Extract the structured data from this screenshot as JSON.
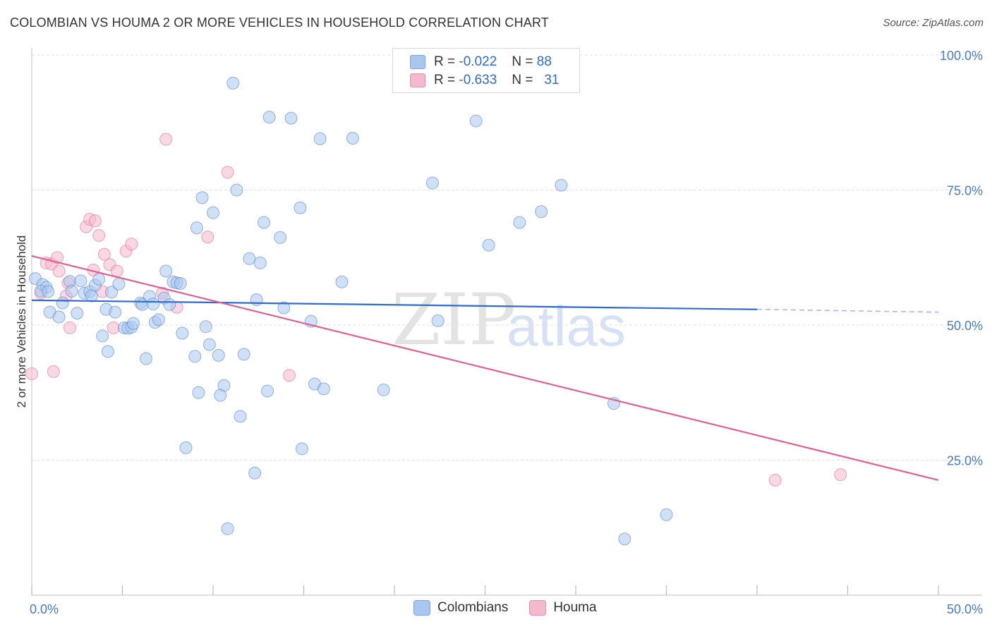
{
  "title": "COLOMBIAN VS HOUMA 2 OR MORE VEHICLES IN HOUSEHOLD CORRELATION CHART",
  "source": "Source: ZipAtlas.com",
  "watermark": {
    "zip": "ZIP",
    "atlas": "atlas"
  },
  "legend": {
    "rows": [
      {
        "r_label": "R =",
        "r_value": "-0.022",
        "n_label": "N =",
        "n_value": "88",
        "color": "#a9c6f0"
      },
      {
        "r_label": "R =",
        "r_value": "-0.633",
        "n_label": "N =",
        "n_value": "31",
        "color": "#f5b8cc"
      }
    ]
  },
  "bottom_legend": [
    {
      "label": "Colombians",
      "color": "#a9c6f0"
    },
    {
      "label": "Houma",
      "color": "#f5b8cc"
    }
  ],
  "chart_data": {
    "type": "scatter",
    "title": "COLOMBIAN VS HOUMA 2 OR MORE VEHICLES IN HOUSEHOLD CORRELATION CHART",
    "xlabel": "",
    "ylabel": "2 or more Vehicles in Household",
    "xlim": [
      0,
      50
    ],
    "ylim": [
      0,
      105
    ],
    "x_tick_labels": [
      "0.0%",
      "50.0%"
    ],
    "y_ticks": [
      25,
      50,
      75,
      100
    ],
    "y_tick_labels": [
      "25.0%",
      "50.0%",
      "75.0%",
      "100.0%"
    ],
    "grid": true,
    "series": [
      {
        "name": "Colombians",
        "color": "#4a7cc4",
        "fill": "#a9c6f0",
        "points": [
          [
            0.2,
            58.6
          ],
          [
            0.6,
            57.5
          ],
          [
            0.8,
            57.0
          ],
          [
            0.5,
            56.3
          ],
          [
            0.9,
            56.2
          ],
          [
            1.0,
            52.4
          ],
          [
            1.5,
            51.5
          ],
          [
            1.7,
            54.1
          ],
          [
            2.1,
            58.1
          ],
          [
            2.2,
            56.3
          ],
          [
            2.5,
            52.2
          ],
          [
            2.7,
            58.2
          ],
          [
            2.9,
            55.9
          ],
          [
            3.2,
            56.2
          ],
          [
            3.3,
            55.4
          ],
          [
            3.5,
            57.4
          ],
          [
            3.7,
            58.5
          ],
          [
            3.9,
            48.0
          ],
          [
            4.1,
            52.9
          ],
          [
            4.2,
            45.1
          ],
          [
            4.4,
            56.1
          ],
          [
            4.6,
            52.4
          ],
          [
            4.8,
            57.6
          ],
          [
            5.1,
            49.5
          ],
          [
            5.3,
            49.4
          ],
          [
            5.5,
            49.6
          ],
          [
            5.6,
            50.3
          ],
          [
            6.0,
            54.1
          ],
          [
            6.1,
            53.8
          ],
          [
            6.3,
            43.8
          ],
          [
            6.5,
            55.3
          ],
          [
            6.7,
            53.9
          ],
          [
            6.8,
            50.5
          ],
          [
            7.0,
            51.0
          ],
          [
            7.3,
            55.0
          ],
          [
            7.4,
            60.0
          ],
          [
            7.6,
            53.8
          ],
          [
            7.8,
            58.0
          ],
          [
            8.0,
            57.8
          ],
          [
            8.2,
            57.7
          ],
          [
            8.3,
            48.5
          ],
          [
            8.5,
            27.3
          ],
          [
            9.0,
            44.2
          ],
          [
            9.2,
            37.5
          ],
          [
            9.4,
            73.6
          ],
          [
            9.1,
            68.0
          ],
          [
            9.6,
            49.7
          ],
          [
            9.8,
            46.4
          ],
          [
            10.0,
            70.8
          ],
          [
            10.3,
            44.4
          ],
          [
            10.6,
            38.8
          ],
          [
            10.4,
            37.0
          ],
          [
            10.8,
            12.3
          ],
          [
            11.1,
            94.8
          ],
          [
            11.3,
            75.0
          ],
          [
            11.5,
            33.1
          ],
          [
            11.7,
            44.6
          ],
          [
            12.0,
            62.3
          ],
          [
            12.3,
            22.6
          ],
          [
            12.4,
            54.7
          ],
          [
            12.6,
            61.5
          ],
          [
            12.8,
            69.0
          ],
          [
            13.0,
            37.8
          ],
          [
            13.1,
            88.5
          ],
          [
            13.7,
            66.2
          ],
          [
            13.9,
            53.2
          ],
          [
            14.3,
            88.3
          ],
          [
            14.8,
            71.7
          ],
          [
            14.9,
            27.1
          ],
          [
            15.4,
            50.7
          ],
          [
            15.6,
            39.1
          ],
          [
            15.9,
            84.5
          ],
          [
            16.1,
            38.2
          ],
          [
            17.1,
            58.0
          ],
          [
            17.7,
            84.6
          ],
          [
            19.4,
            38.0
          ],
          [
            22.1,
            76.3
          ],
          [
            22.4,
            50.8
          ],
          [
            24.5,
            87.8
          ],
          [
            25.2,
            64.8
          ],
          [
            26.9,
            69.0
          ],
          [
            28.1,
            71.0
          ],
          [
            29.2,
            75.9
          ],
          [
            32.1,
            35.5
          ],
          [
            32.7,
            10.4
          ],
          [
            35.0,
            14.9
          ]
        ],
        "trend": {
          "x": [
            0,
            40
          ],
          "y": [
            54.6,
            52.9
          ],
          "dashed_x": [
            40,
            50
          ],
          "dashed_y": [
            52.9,
            52.4
          ]
        }
      },
      {
        "name": "Houma",
        "color": "#e0608f",
        "fill": "#f5b8cc",
        "points": [
          [
            0.0,
            41.0
          ],
          [
            0.5,
            55.9
          ],
          [
            0.8,
            61.5
          ],
          [
            1.1,
            61.3
          ],
          [
            1.2,
            41.4
          ],
          [
            1.4,
            62.5
          ],
          [
            1.5,
            60.0
          ],
          [
            1.9,
            55.4
          ],
          [
            2.0,
            57.8
          ],
          [
            2.1,
            49.5
          ],
          [
            3.0,
            68.2
          ],
          [
            3.2,
            69.6
          ],
          [
            3.4,
            60.2
          ],
          [
            3.5,
            69.3
          ],
          [
            3.7,
            66.6
          ],
          [
            3.9,
            56.2
          ],
          [
            4.0,
            63.1
          ],
          [
            4.3,
            61.2
          ],
          [
            4.5,
            49.5
          ],
          [
            4.7,
            60.0
          ],
          [
            5.2,
            63.7
          ],
          [
            5.5,
            65.0
          ],
          [
            7.2,
            55.9
          ],
          [
            7.4,
            84.4
          ],
          [
            8.0,
            53.3
          ],
          [
            9.7,
            66.3
          ],
          [
            10.8,
            78.3
          ],
          [
            14.2,
            40.7
          ],
          [
            41.0,
            21.3
          ],
          [
            44.6,
            22.3
          ]
        ],
        "trend": {
          "x": [
            0,
            50
          ],
          "y": [
            62.8,
            21.3
          ]
        }
      }
    ]
  }
}
